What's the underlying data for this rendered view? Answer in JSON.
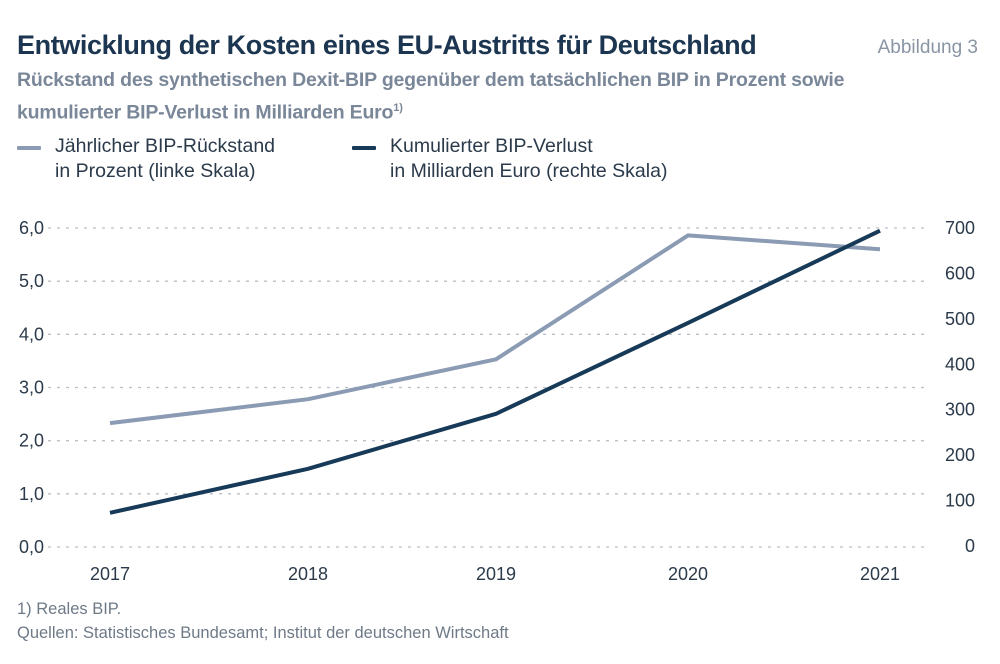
{
  "header": {
    "title": "Entwicklung der Kosten eines EU-Austritts für Deutschland",
    "figure_label": "Abbildung 3",
    "subtitle_line1": "Rückstand des synthetischen Dexit-BIP gegenüber dem tatsächlichen BIP in Prozent sowie",
    "subtitle_line2": "kumulierter BIP-Verlust in Milliarden Euro",
    "subtitle_note_marker": "1)"
  },
  "legend": [
    {
      "line1": "Jährlicher BIP-Rückstand",
      "line2": "in Prozent (linke Skala)",
      "color": "#8a9bb3"
    },
    {
      "line1": "Kumulierter BIP-Verlust",
      "line2": "in Milliarden Euro (rechte Skala)",
      "color": "#163a57"
    }
  ],
  "footer": {
    "note": "1) Reales BIP.",
    "sources": "Quellen: Statistisches Bundesamt; Institut der deutschen Wirtschaft"
  },
  "chart_data": {
    "type": "line",
    "title": "Entwicklung der Kosten eines EU-Austritts für Deutschland",
    "subtitle": "Rückstand des synthetischen Dexit-BIP gegenüber dem tatsächlichen BIP in Prozent sowie kumulierter BIP-Verlust in Milliarden Euro",
    "x": [
      "2017",
      "2018",
      "2019",
      "2020",
      "2021"
    ],
    "series": [
      {
        "name": "Jährlicher BIP-Rückstand in Prozent (linke Skala)",
        "axis": "left",
        "color": "#8a9bb3",
        "values": [
          2.33,
          2.78,
          3.53,
          5.86,
          5.6
        ]
      },
      {
        "name": "Kumulierter BIP-Verlust in Milliarden Euro (rechte Skala)",
        "axis": "right",
        "color": "#163a57",
        "values": [
          73,
          170,
          291,
          491,
          694
        ]
      }
    ],
    "y_left": {
      "label": "",
      "lim": [
        0,
        6
      ],
      "ticks": [
        0,
        1,
        2,
        3,
        4,
        5,
        6
      ],
      "tick_labels": [
        "0,0",
        "1,0",
        "2,0",
        "3,0",
        "4,0",
        "5,0",
        "6,0"
      ]
    },
    "y_right": {
      "label": "",
      "lim": [
        0,
        700
      ],
      "ticks": [
        0,
        100,
        200,
        300,
        400,
        500,
        600,
        700
      ],
      "tick_labels": [
        "0",
        "100",
        "200",
        "300",
        "400",
        "500",
        "600",
        "700"
      ]
    },
    "xlabel": "",
    "grid": "horizontal dashed (left scale)",
    "legend_position": "top-left"
  }
}
